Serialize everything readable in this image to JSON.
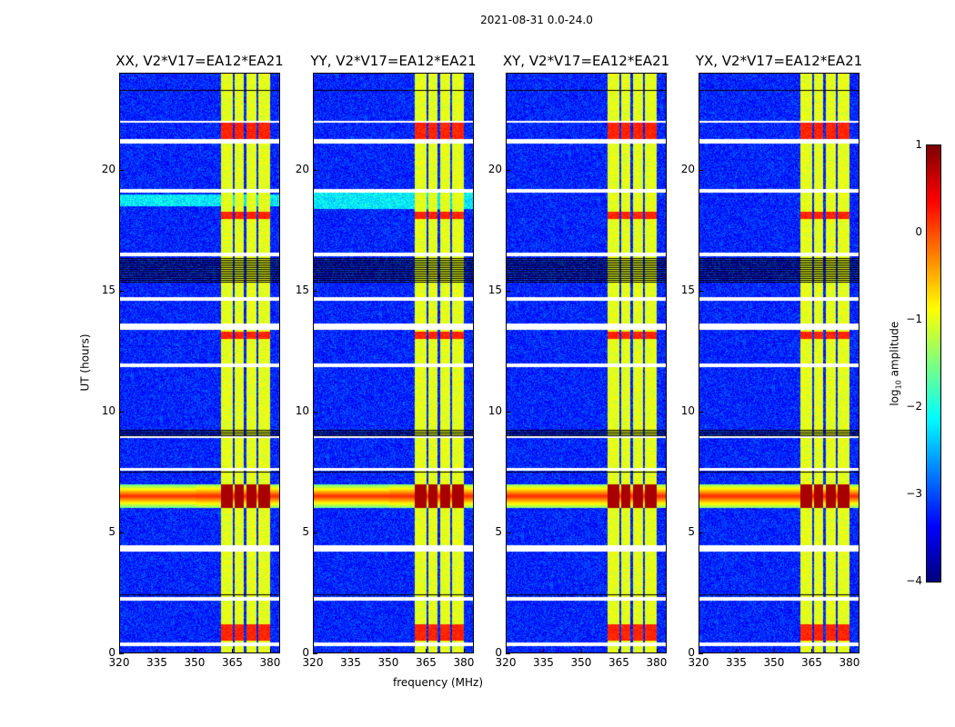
{
  "chart_data": {
    "type": "heatmap",
    "title": "2021-08-31 0.0-24.0",
    "xlabel": "frequency (MHz)",
    "ylabel": "UT (hours)",
    "xlim": [
      320,
      384
    ],
    "ylim": [
      0,
      24
    ],
    "xticks": [
      "320",
      "335",
      "350",
      "365",
      "380"
    ],
    "yticks": [
      "0",
      "5",
      "10",
      "15",
      "20"
    ],
    "colorbar": {
      "label_prefix": "log",
      "label_sub": "10",
      "label_suffix": " amplitude",
      "range": [
        -4,
        1
      ],
      "ticks": [
        "−4",
        "−3",
        "−2",
        "−1",
        "0",
        "1"
      ],
      "colormap": "jet"
    },
    "panels": [
      {
        "title": "XX, V2*V17=EA12*EA21",
        "pol": "XX"
      },
      {
        "title": "YY, V2*V17=EA12*EA21",
        "pol": "YY"
      },
      {
        "title": "XY, V2*V17=EA12*EA21",
        "pol": "XY"
      },
      {
        "title": "YX, V2*V17=EA12*EA21",
        "pol": "YX"
      }
    ],
    "background_level": -3.2,
    "rfi_band_mhz": [
      360.5,
      380
    ],
    "rfi_band_level": -1.0,
    "rfi_band_gaps_mhz": [
      365.5,
      370,
      375
    ],
    "broadband_rfi_hours": [
      6.0,
      7.0
    ],
    "broadband_rfi_level": 0.2,
    "strong_band_hours": [
      [
        21.1,
        22.0
      ],
      [
        0.5,
        1.2
      ],
      [
        13.0,
        13.3
      ],
      [
        18.0,
        18.3
      ]
    ],
    "flagged_hours": [
      [
        0.3,
        0.45
      ],
      [
        2.15,
        2.3
      ],
      [
        4.2,
        4.45
      ],
      [
        7.55,
        7.65
      ],
      [
        8.9,
        9.0
      ],
      [
        11.85,
        12.0
      ],
      [
        13.4,
        13.65
      ],
      [
        14.6,
        14.75
      ],
      [
        16.45,
        16.6
      ],
      [
        19.1,
        19.25
      ],
      [
        21.1,
        21.3
      ],
      [
        22.0,
        22.05
      ]
    ],
    "dropout_hours": [
      [
        23.3,
        23.35
      ],
      [
        23.7,
        23.75
      ],
      [
        15.3,
        16.4
      ],
      [
        9.0,
        9.25
      ],
      [
        7.45,
        7.5
      ],
      [
        2.4,
        2.45
      ]
    ]
  }
}
